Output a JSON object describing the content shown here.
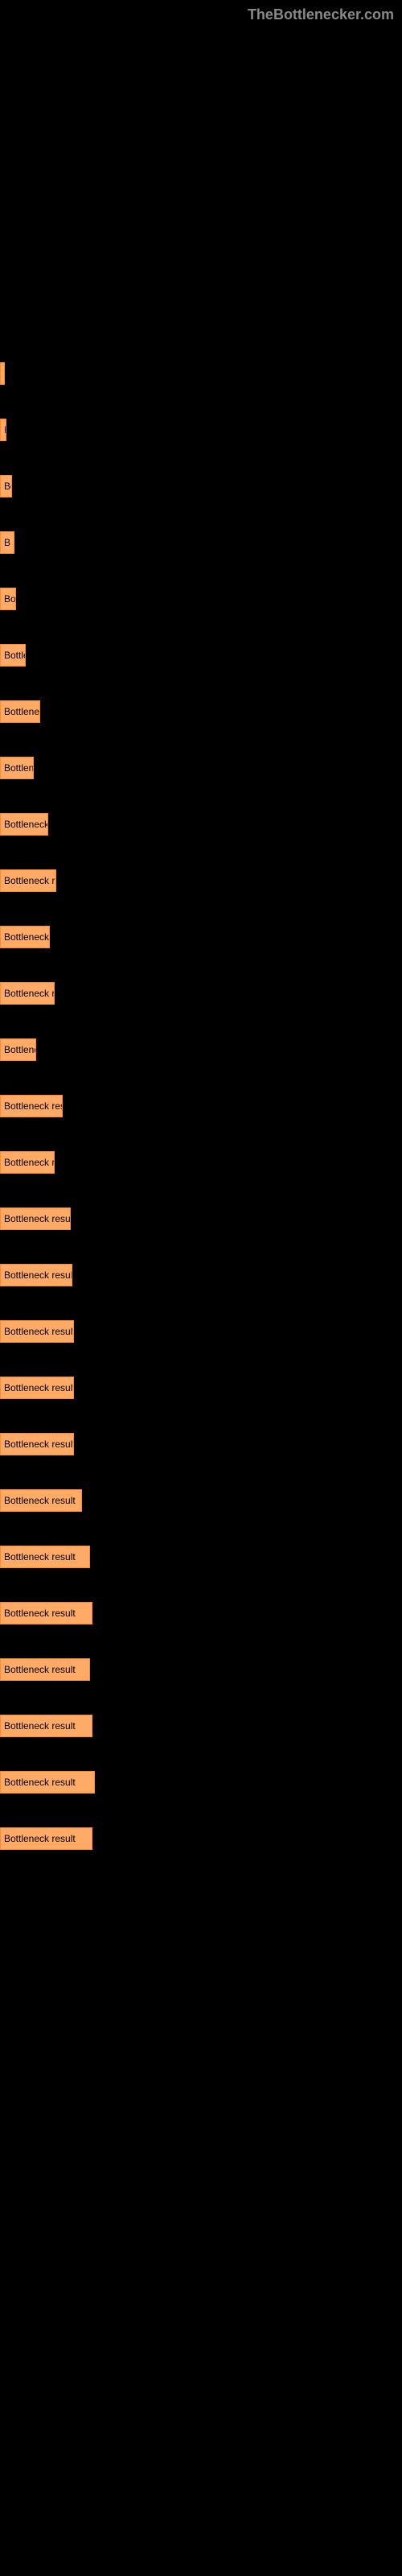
{
  "watermark": "TheBottlenecker.com",
  "chart": {
    "type": "bar",
    "bar_color": "#ffaa66",
    "bar_border_color": "#ff8833",
    "background_color": "#000000",
    "label_color": "#000000",
    "label_fontsize": 12,
    "bars": [
      {
        "label": "",
        "width": 3
      },
      {
        "label": "B",
        "width": 8
      },
      {
        "label": "Bo",
        "width": 15
      },
      {
        "label": "B",
        "width": 18
      },
      {
        "label": "Bo",
        "width": 20
      },
      {
        "label": "Bottlen",
        "width": 32
      },
      {
        "label": "Bottleneck r",
        "width": 50
      },
      {
        "label": "Bottlenec",
        "width": 42
      },
      {
        "label": "Bottleneck res",
        "width": 60
      },
      {
        "label": "Bottleneck result",
        "width": 70
      },
      {
        "label": "Bottleneck re",
        "width": 62
      },
      {
        "label": "Bottleneck resu",
        "width": 68
      },
      {
        "label": "Bottleneck",
        "width": 45
      },
      {
        "label": "Bottleneck result",
        "width": 78
      },
      {
        "label": "Bottleneck res",
        "width": 68
      },
      {
        "label": "Bottleneck result",
        "width": 88
      },
      {
        "label": "Bottleneck result",
        "width": 90
      },
      {
        "label": "Bottleneck result",
        "width": 92
      },
      {
        "label": "Bottleneck result",
        "width": 92
      },
      {
        "label": "Bottleneck result",
        "width": 92
      },
      {
        "label": "Bottleneck result",
        "width": 102
      },
      {
        "label": "Bottleneck result",
        "width": 112
      },
      {
        "label": "Bottleneck result",
        "width": 115
      },
      {
        "label": "Bottleneck result",
        "width": 112
      },
      {
        "label": "Bottleneck result",
        "width": 115
      },
      {
        "label": "Bottleneck result",
        "width": 118
      },
      {
        "label": "Bottleneck result",
        "width": 115
      }
    ]
  }
}
